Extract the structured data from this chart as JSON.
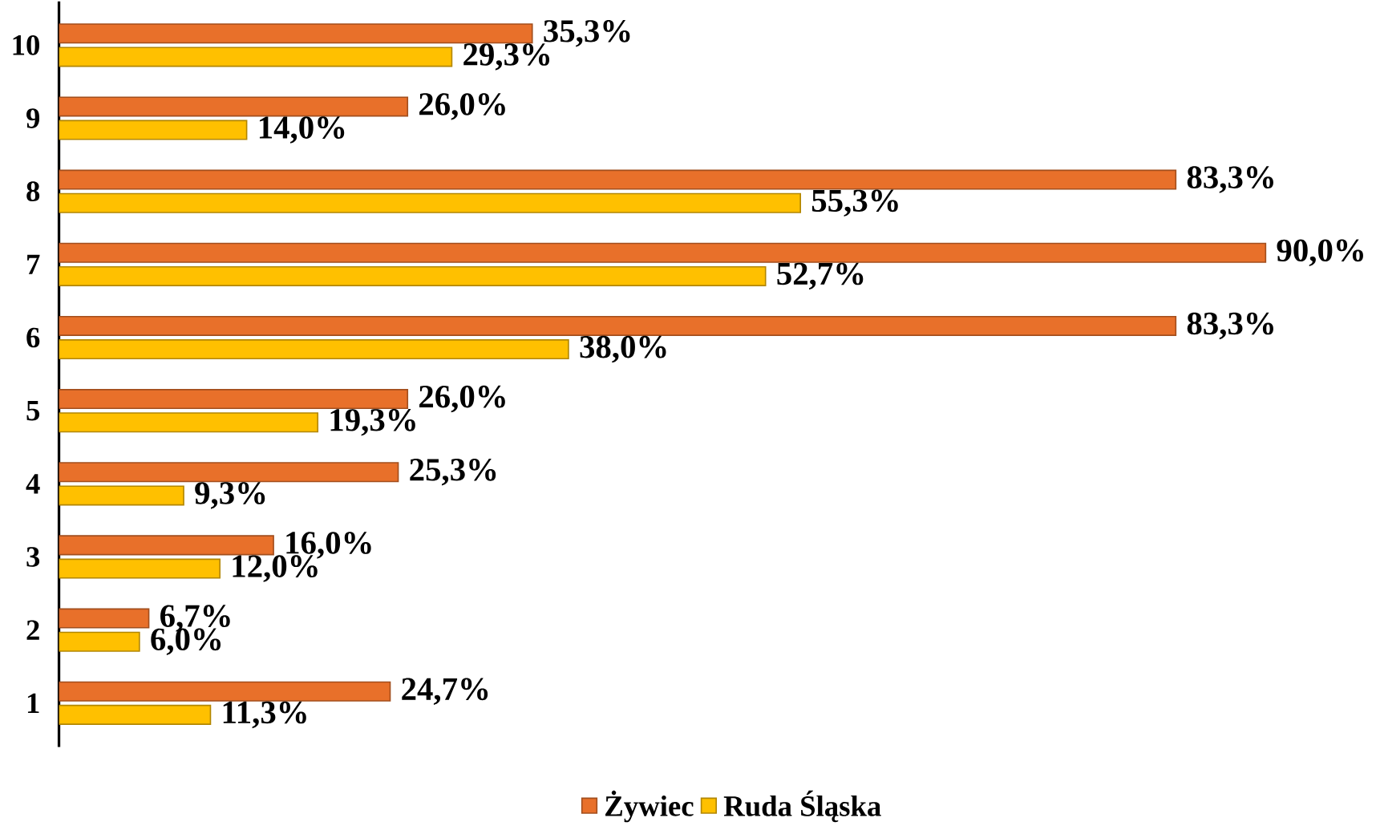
{
  "chart_data": {
    "type": "bar",
    "orientation": "horizontal",
    "categories": [
      "10",
      "9",
      "8",
      "7",
      "6",
      "5",
      "4",
      "3",
      "2",
      "1"
    ],
    "series": [
      {
        "name": "Żywiec",
        "color": "#e8702a",
        "values": [
          35.3,
          26.0,
          83.3,
          90.0,
          83.3,
          26.0,
          25.3,
          16.0,
          6.7,
          24.7
        ],
        "value_labels": [
          "35,3%",
          "26,0%",
          "83,3%",
          "90,0%",
          "83,3%",
          "26,0%",
          "25,3%",
          "16,0%",
          "6,7%",
          "24,7%"
        ]
      },
      {
        "name": "Ruda Śląska",
        "color": "#ffc000",
        "values": [
          29.3,
          14.0,
          55.3,
          52.7,
          38.0,
          19.3,
          9.3,
          12.0,
          6.0,
          11.3
        ],
        "value_labels": [
          "29,3%",
          "14,0%",
          "55,3%",
          "52,7%",
          "38,0%",
          "19,3%",
          "9,3%",
          "12,0%",
          "6,0%",
          "11,3%"
        ]
      }
    ],
    "legend": "bottom"
  }
}
